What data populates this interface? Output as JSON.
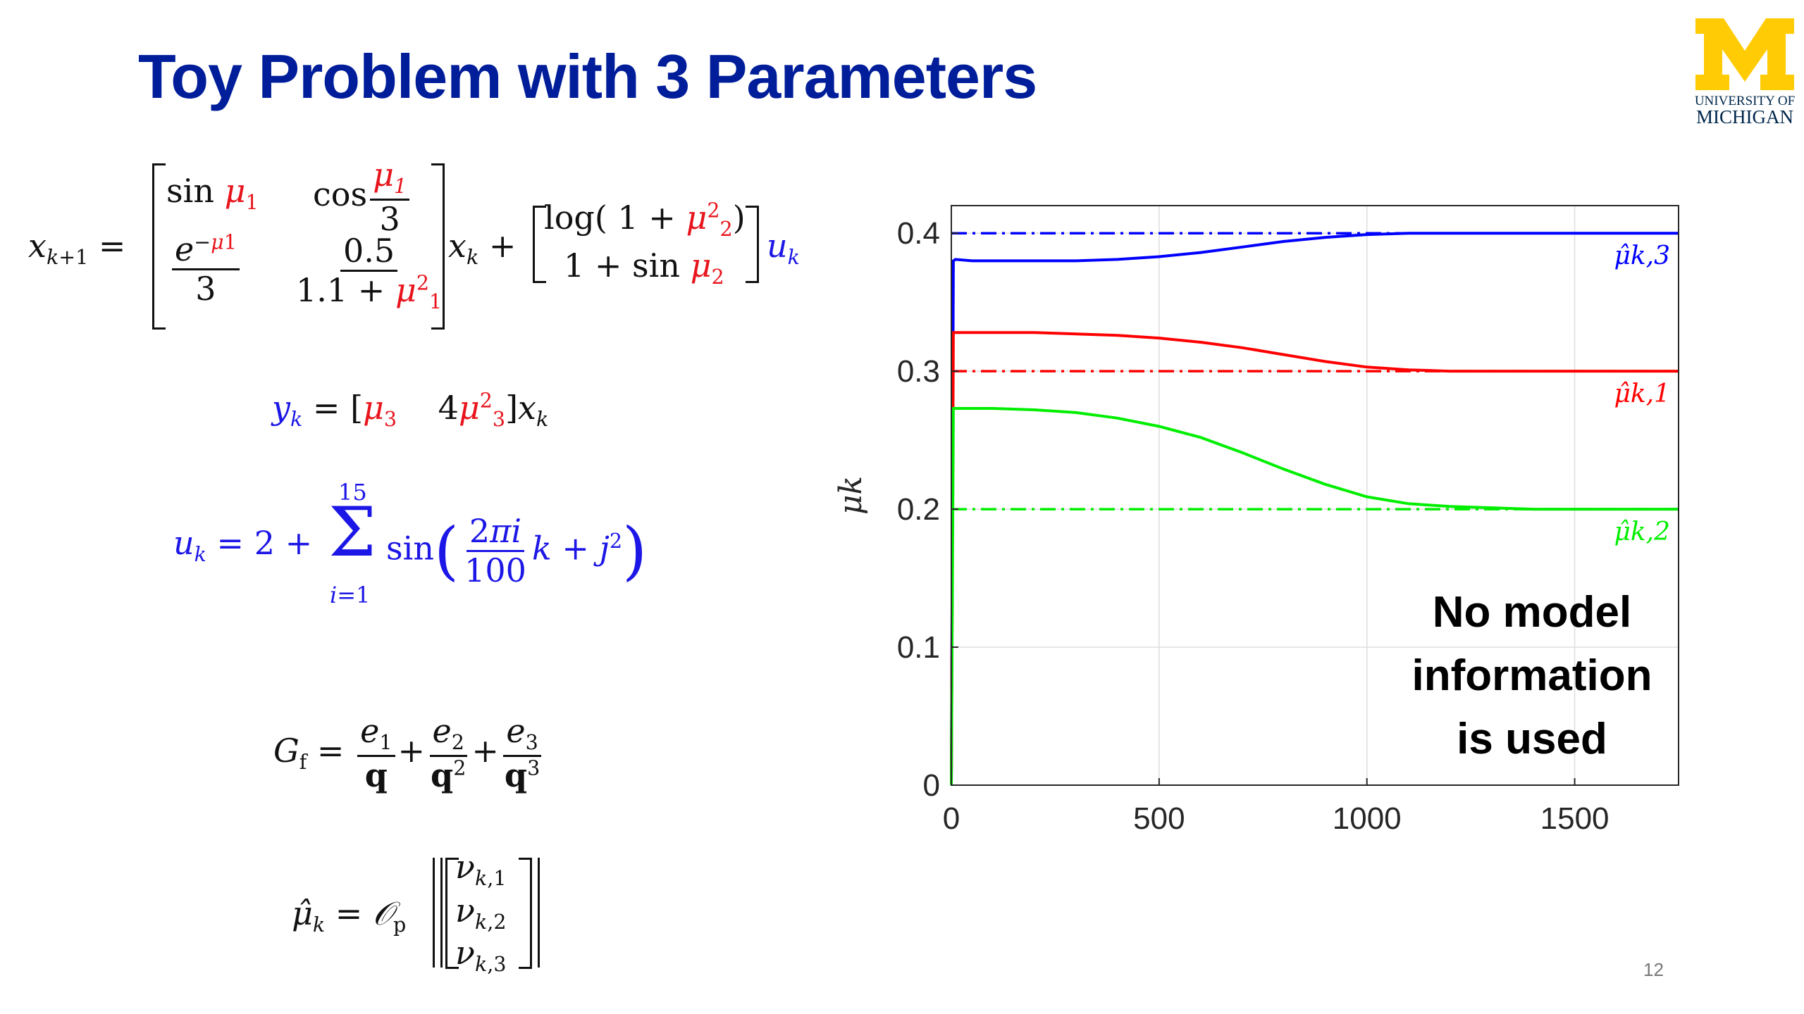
{
  "slide": {
    "title": "Toy Problem with 3 Parameters",
    "slide_number": "12",
    "logo": {
      "letter": "M",
      "line1": "UNIVERSITY OF",
      "line2": "MICHIGAN",
      "color_maize": "#ffcb05",
      "color_blue": "#00274c"
    }
  },
  "colors": {
    "mu1": "#ff0000",
    "mu2": "#00ee00",
    "mu3": "#0000ff",
    "title": "#001d9a"
  },
  "chart_data": {
    "type": "line",
    "xlim": [
      0,
      1750
    ],
    "ylim": [
      0,
      0.42
    ],
    "xticks": [
      0,
      500,
      1000,
      1500
    ],
    "yticks": [
      0,
      0.1,
      0.2,
      0.3,
      0.4
    ],
    "xtick_labels": [
      "0",
      "500",
      "1000",
      "1500"
    ],
    "ytick_labels": [
      "0",
      "0.1",
      "0.2",
      "0.3",
      "0.4"
    ],
    "ylabel": "μk",
    "grid": true,
    "annotation": [
      "No model",
      "information",
      "is used"
    ],
    "series": [
      {
        "name": "μ̂k,3",
        "color": "#0000ff",
        "x": [
          0,
          5,
          10,
          50,
          100,
          200,
          300,
          400,
          500,
          600,
          700,
          800,
          900,
          1000,
          1100,
          1200,
          1300,
          1400,
          1500,
          1600,
          1750
        ],
        "y": [
          0.0,
          0.38,
          0.381,
          0.38,
          0.38,
          0.38,
          0.38,
          0.381,
          0.383,
          0.386,
          0.39,
          0.394,
          0.397,
          0.399,
          0.4,
          0.4,
          0.4,
          0.4,
          0.4,
          0.4,
          0.4
        ]
      },
      {
        "name": "μ̂k,1",
        "color": "#ff0000",
        "x": [
          0,
          5,
          10,
          50,
          100,
          200,
          300,
          400,
          500,
          600,
          700,
          800,
          900,
          1000,
          1100,
          1200,
          1300,
          1400,
          1500,
          1600,
          1750
        ],
        "y": [
          0.0,
          0.328,
          0.328,
          0.328,
          0.328,
          0.328,
          0.327,
          0.326,
          0.324,
          0.321,
          0.317,
          0.312,
          0.307,
          0.303,
          0.301,
          0.3,
          0.3,
          0.3,
          0.3,
          0.3,
          0.3
        ]
      },
      {
        "name": "μ̂k,2",
        "color": "#00ee00",
        "x": [
          0,
          5,
          10,
          50,
          100,
          200,
          300,
          400,
          500,
          600,
          700,
          800,
          900,
          1000,
          1100,
          1200,
          1300,
          1400,
          1500,
          1600,
          1750
        ],
        "y": [
          0.0,
          0.273,
          0.273,
          0.273,
          0.273,
          0.272,
          0.27,
          0.266,
          0.26,
          0.252,
          0.241,
          0.229,
          0.218,
          0.209,
          0.204,
          0.202,
          0.201,
          0.2,
          0.2,
          0.2,
          0.2
        ]
      }
    ],
    "references": [
      {
        "color": "#0000ff",
        "y": 0.4
      },
      {
        "color": "#ff0000",
        "y": 0.3
      },
      {
        "color": "#00ee00",
        "y": 0.2
      }
    ]
  }
}
